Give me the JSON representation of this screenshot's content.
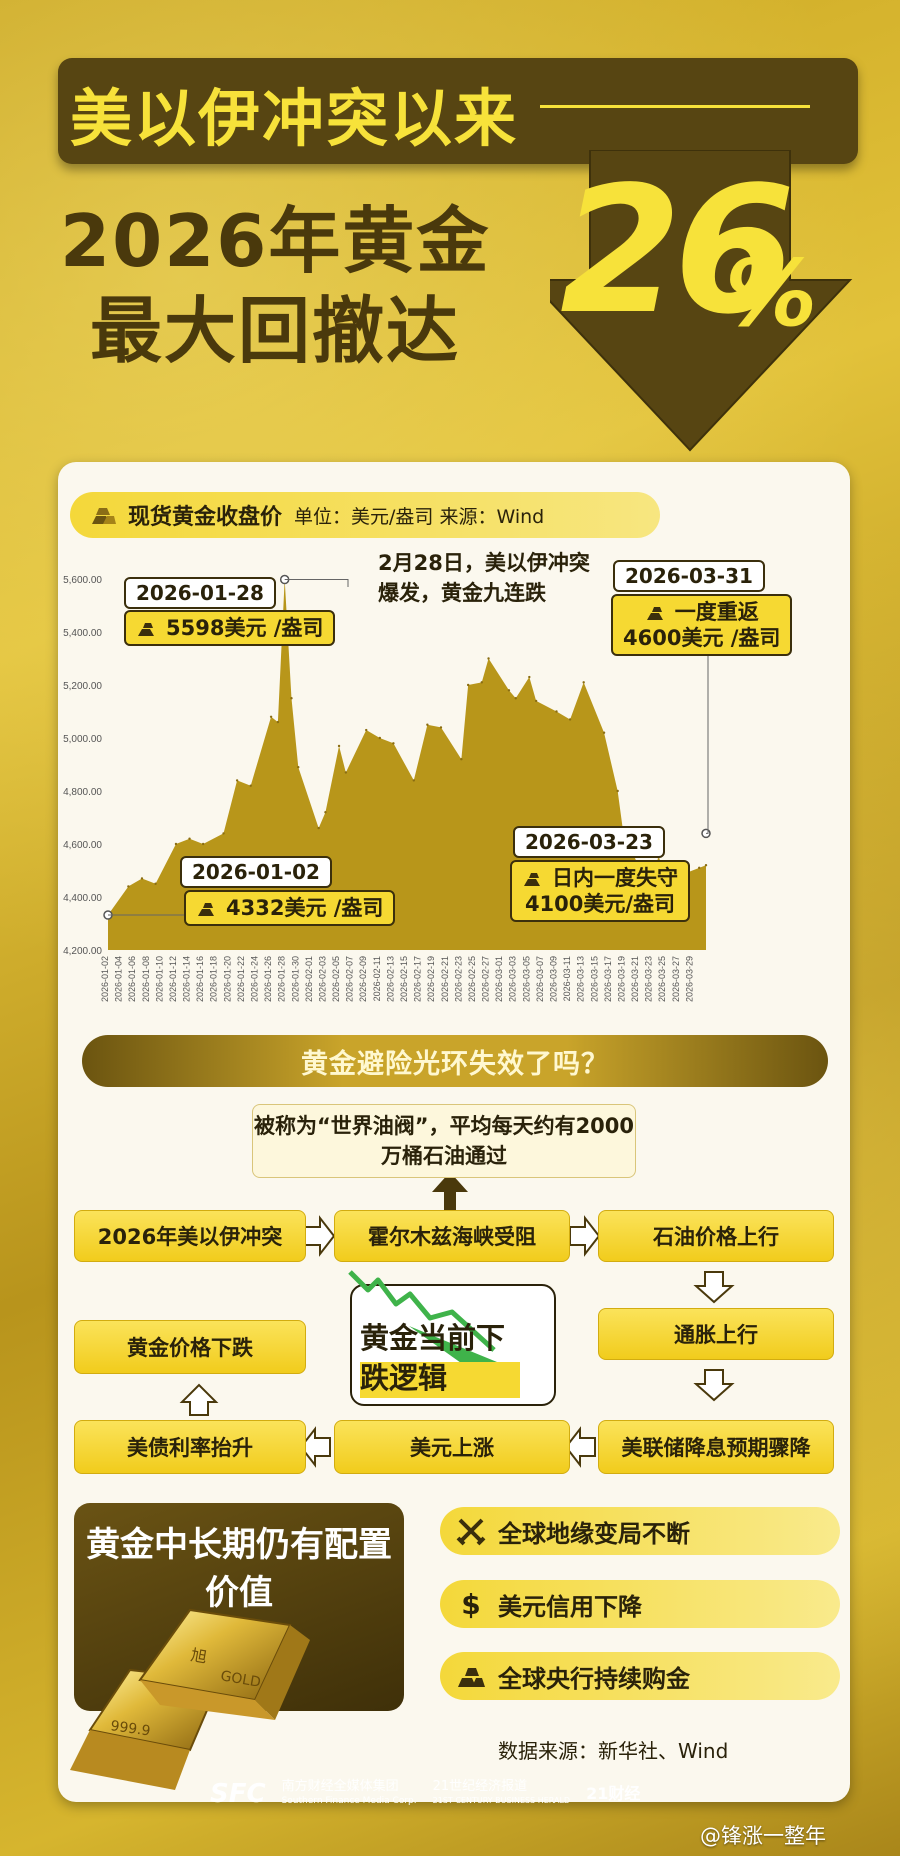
{
  "header": {
    "line1": "美以伊冲突以来",
    "line2": "2026年黄金",
    "line3": "最大回撤达",
    "big_number": "26",
    "percent": "%"
  },
  "chart_tag": {
    "title": "现货黄金收盘价",
    "meta": "单位：美元/盎司  来源：Wind",
    "icon": "gold-bars-icon"
  },
  "chart_note": "2月28日，美以伊冲突爆发，黄金九连跌",
  "callouts": {
    "c1": {
      "date": "2026-01-28",
      "value": "5598美元 /盎司"
    },
    "c2": {
      "date": "2026-01-02",
      "value": "4332美元 /盎司"
    },
    "c3": {
      "date": "2026-03-23",
      "value_line1": "日内一度失守",
      "value_line2": "4100美元/盎司"
    },
    "c4": {
      "date": "2026-03-31",
      "value_line1": "一度重返",
      "value_line2": "4600美元 /盎司"
    }
  },
  "chart_data": {
    "type": "area",
    "title": "现货黄金收盘价",
    "ylabel": "",
    "xlabel": "",
    "ylim": [
      4200,
      5600
    ],
    "yticks": [
      "4,200.00",
      "4,400.00",
      "4,600.00",
      "4,800.00",
      "5,000.00",
      "5,200.00",
      "5,400.00",
      "5,600.00"
    ],
    "x_tick_labels": [
      "2026-01-02",
      "2026-01-04",
      "2026-01-06",
      "2026-01-08",
      "2026-01-10",
      "2026-01-12",
      "2026-01-14",
      "2026-01-16",
      "2026-01-18",
      "2026-01-20",
      "2026-01-22",
      "2026-01-24",
      "2026-01-26",
      "2026-01-28",
      "2026-01-30",
      "2026-02-01",
      "2026-02-03",
      "2026-02-05",
      "2026-02-07",
      "2026-02-09",
      "2026-02-11",
      "2026-02-13",
      "2026-02-15",
      "2026-02-17",
      "2026-02-19",
      "2026-02-21",
      "2026-02-23",
      "2026-02-25",
      "2026-02-27",
      "2026-03-01",
      "2026-03-03",
      "2026-03-05",
      "2026-03-07",
      "2026-03-09",
      "2026-03-11",
      "2026-03-13",
      "2026-03-15",
      "2026-03-17",
      "2026-03-19",
      "2026-03-21",
      "2026-03-23",
      "2026-03-25",
      "2026-03-27",
      "2026-03-29"
    ],
    "series": [
      {
        "x": [
          "2026-01-02",
          "2026-01-05",
          "2026-01-07",
          "2026-01-09",
          "2026-01-12",
          "2026-01-14",
          "2026-01-16",
          "2026-01-19",
          "2026-01-21",
          "2026-01-23",
          "2026-01-26",
          "2026-01-27",
          "2026-01-28",
          "2026-01-29",
          "2026-01-30",
          "2026-02-02",
          "2026-02-03",
          "2026-02-05",
          "2026-02-06",
          "2026-02-09",
          "2026-02-11",
          "2026-02-13",
          "2026-02-16",
          "2026-02-18",
          "2026-02-20",
          "2026-02-23",
          "2026-02-24",
          "2026-02-26",
          "2026-02-27",
          "2026-03-02",
          "2026-03-03",
          "2026-03-05",
          "2026-03-06",
          "2026-03-09",
          "2026-03-11",
          "2026-03-13",
          "2026-03-16",
          "2026-03-18",
          "2026-03-19",
          "2026-03-20",
          "2026-03-23",
          "2026-03-24",
          "2026-03-25",
          "2026-03-26",
          "2026-03-27",
          "2026-03-30",
          "2026-03-31"
        ],
        "values": [
          4332,
          4440,
          4470,
          4450,
          4600,
          4620,
          4600,
          4640,
          4840,
          4820,
          5080,
          5060,
          5598,
          5150,
          4890,
          4660,
          4720,
          4970,
          4870,
          5030,
          5000,
          4980,
          4840,
          5050,
          5040,
          4920,
          5200,
          5210,
          5300,
          5180,
          5150,
          5230,
          5140,
          5100,
          5070,
          5210,
          5020,
          4800,
          4610,
          4580,
          4400,
          4560,
          4460,
          4530,
          4480,
          4510,
          4520
        ]
      }
    ],
    "area_color": "#b8961a",
    "grid": false
  },
  "section_title": "黄金避险光环失效了吗？",
  "flow": {
    "top_note": "被称为“世界油阀”，平均每天约有2000万桶石油通过",
    "a": "2026年美以伊冲突",
    "b": "霍尔木兹海峡受阻",
    "c": "石油价格上行",
    "d": "通胀上行",
    "e": "美联储降息预期骤降",
    "f": "美元上涨",
    "g": "美债利率抬升",
    "h": "黄金价格下跌",
    "logic": "黄金当前下跌逻辑"
  },
  "bottom": {
    "panel_title": "黄金中长期仍有配置价值",
    "bar_text_1": "旭",
    "bar_text_2": "GOLD",
    "bar_text_3": "999.9",
    "reasons": [
      {
        "icon": "crossed-swords-icon",
        "label": "全球地缘变局不断"
      },
      {
        "icon": "dollar-icon",
        "label": "美元信用下降"
      },
      {
        "icon": "gold-bars-icon",
        "label": "全球央行持续购金"
      }
    ]
  },
  "source": "数据来源：新华社、Wind",
  "footer": {
    "sfc": "SFC",
    "org1": "南方财经全媒体集团",
    "org1_en": "Southern Finance Media Corp.",
    "org2": "21世纪经济报道",
    "org2_en": "21ST CENTURY BUSINESS HERALD",
    "org3": "21财经",
    "watermark": "@锋涨一整年"
  }
}
